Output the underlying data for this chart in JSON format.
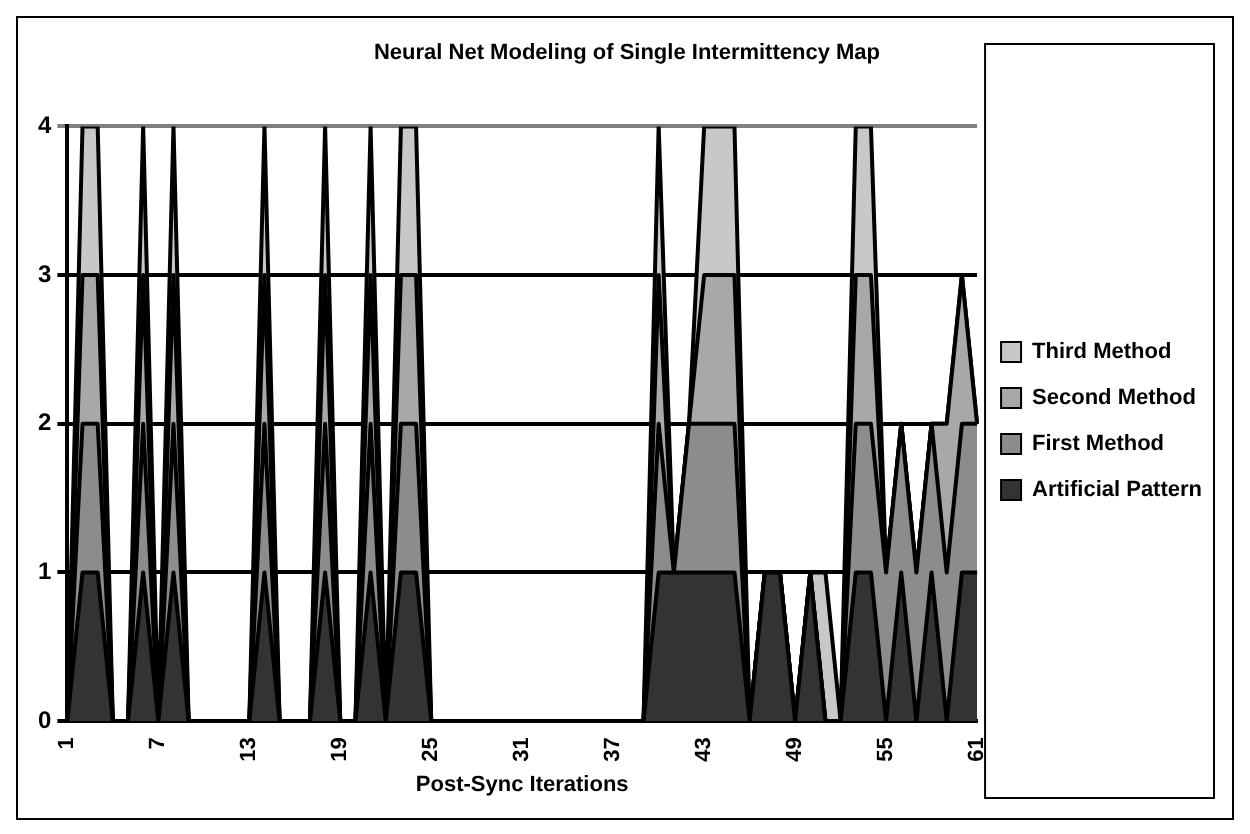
{
  "chart_data": {
    "type": "area",
    "stacked": true,
    "title": "Neural Net Modeling of Single Intermittency Map",
    "xlabel": "Post-Sync Iterations",
    "categories": [
      "1",
      null,
      null,
      null,
      null,
      null,
      "7",
      null,
      null,
      null,
      null,
      null,
      "13",
      null,
      null,
      null,
      null,
      null,
      "19",
      null,
      null,
      null,
      null,
      null,
      "25",
      null,
      null,
      null,
      null,
      null,
      "31",
      null,
      null,
      null,
      null,
      null,
      "37",
      null,
      null,
      null,
      null,
      null,
      "43",
      null,
      null,
      null,
      null,
      null,
      "49",
      null,
      null,
      null,
      null,
      null,
      "55",
      null,
      null,
      null,
      null,
      null,
      "61"
    ],
    "series": [
      {
        "name": "Artificial Pattern",
        "color": "#333333",
        "values": [
          0,
          1,
          1,
          0,
          0,
          1,
          0,
          1,
          0,
          0,
          0,
          0,
          0,
          1,
          0,
          0,
          0,
          1,
          0,
          0,
          1,
          0,
          1,
          1,
          0,
          0,
          0,
          0,
          0,
          0,
          0,
          0,
          0,
          0,
          0,
          0,
          0,
          0,
          0,
          1,
          1,
          1,
          1,
          1,
          1,
          0,
          1,
          1,
          0,
          1,
          0,
          0,
          1,
          1,
          0,
          1,
          0,
          1,
          0,
          1,
          1
        ]
      },
      {
        "name": "First Method",
        "color": "#8c8c8c",
        "values": [
          0,
          1,
          1,
          0,
          0,
          1,
          0,
          1,
          0,
          0,
          0,
          0,
          0,
          1,
          0,
          0,
          0,
          1,
          0,
          0,
          1,
          0,
          1,
          1,
          0,
          0,
          0,
          0,
          0,
          0,
          0,
          0,
          0,
          0,
          0,
          0,
          0,
          0,
          0,
          1,
          0,
          1,
          1,
          1,
          1,
          0,
          0,
          0,
          0,
          0,
          0,
          0,
          1,
          1,
          1,
          1,
          1,
          1,
          1,
          1,
          1
        ]
      },
      {
        "name": "Second Method",
        "color": "#a8a8a8",
        "values": [
          0,
          1,
          1,
          0,
          0,
          1,
          0,
          1,
          0,
          0,
          0,
          0,
          0,
          1,
          0,
          0,
          0,
          1,
          0,
          0,
          1,
          0,
          1,
          1,
          0,
          0,
          0,
          0,
          0,
          0,
          0,
          0,
          0,
          0,
          0,
          0,
          0,
          0,
          0,
          1,
          0,
          0,
          1,
          1,
          1,
          0,
          0,
          0,
          0,
          0,
          0,
          0,
          1,
          1,
          0,
          0,
          0,
          0,
          1,
          1,
          0
        ]
      },
      {
        "name": "Third Method",
        "color": "#c8c8c8",
        "values": [
          0,
          1,
          1,
          0,
          0,
          1,
          0,
          1,
          0,
          0,
          0,
          0,
          0,
          1,
          0,
          0,
          0,
          1,
          0,
          0,
          1,
          0,
          1,
          1,
          0,
          0,
          0,
          0,
          0,
          0,
          0,
          0,
          0,
          0,
          0,
          0,
          0,
          0,
          0,
          1,
          0,
          0,
          1,
          1,
          1,
          0,
          0,
          0,
          0,
          0,
          1,
          0,
          1,
          1,
          0,
          0,
          0,
          0,
          0,
          0,
          0
        ]
      }
    ],
    "ylim": [
      0,
      4
    ],
    "yticks": [
      0,
      1,
      2,
      3,
      4
    ],
    "grid": "y",
    "legend": "right"
  }
}
